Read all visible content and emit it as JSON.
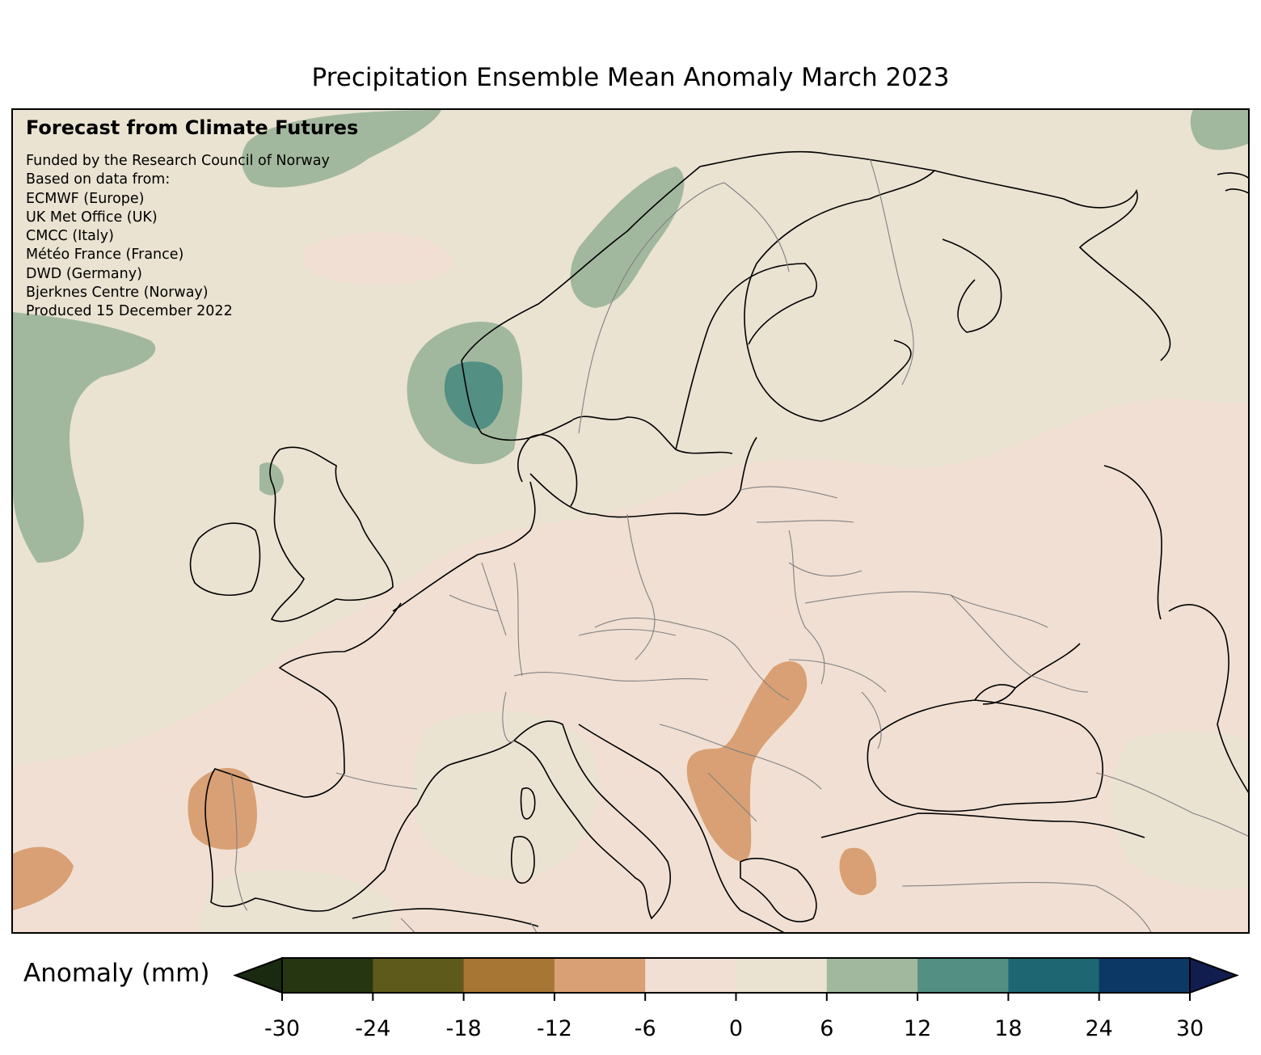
{
  "title": "Precipitation Ensemble Mean Anomaly March 2023",
  "credit": {
    "heading": "Forecast from Climate Futures",
    "lines": [
      "Funded by the Research Council of Norway",
      "Based on data from:",
      "ECMWF (Europe)",
      "UK Met Office (UK)",
      "CMCC (Italy)",
      "Météo France (France)",
      "DWD (Germany)",
      "Bjerknes Centre (Norway)",
      "Produced 15 December 2022"
    ]
  },
  "colorbar": {
    "label": "Anomaly (mm)",
    "ticks": [
      "-30",
      "-24",
      "-18",
      "-12",
      "-6",
      "0",
      "6",
      "12",
      "18",
      "24",
      "30"
    ],
    "colors": [
      "#263610",
      "#5e5a1b",
      "#a87634",
      "#d8a074",
      "#f1dfd3",
      "#eae3d2",
      "#a2b89e",
      "#538f83",
      "#1d6672",
      "#0c3866"
    ],
    "under_color": "#1a2a10",
    "over_color": "#121d4f"
  },
  "map": {
    "region": "Europe",
    "land_color": "#eae3d2",
    "coastline_color": "#000000",
    "border_color": "#808080"
  }
}
